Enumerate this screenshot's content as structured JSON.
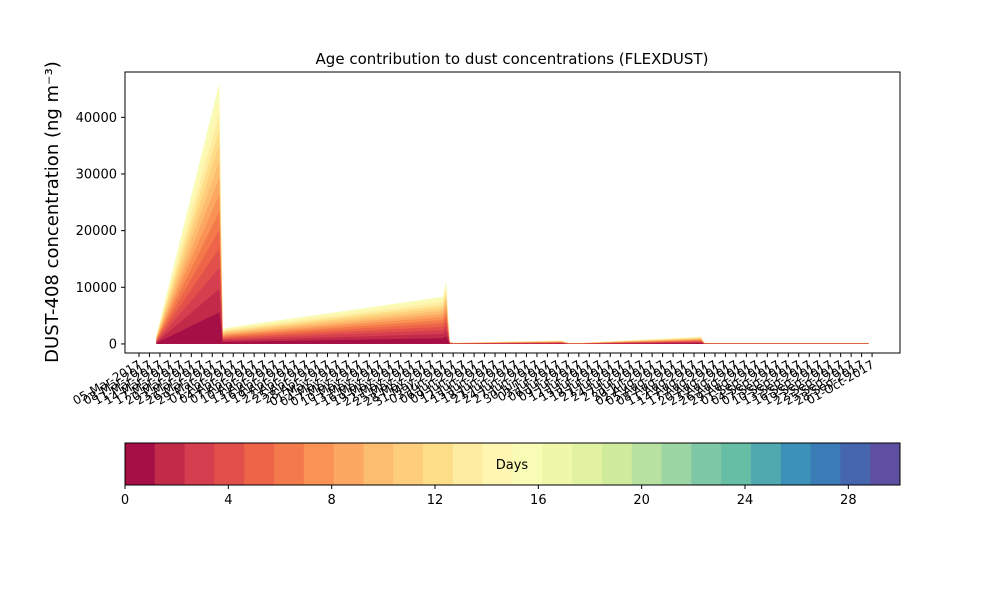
{
  "chart_data": {
    "type": "area",
    "title": "Age contribution to dust concentrations (FLEXDUST)",
    "xlabel": "",
    "ylabel": "DUST-408 concentration (ng m⁻³)",
    "ylim": [
      -1600,
      48000
    ],
    "yticks": [
      0,
      10000,
      20000,
      30000,
      40000
    ],
    "ytick_labels": [
      "0",
      "10000",
      "20000",
      "30000",
      "40000"
    ],
    "xlim": [
      "2017-03-01",
      "2017-10-09"
    ],
    "x_tick_dates": [
      "2017-03-05",
      "2017-03-08",
      "2017-03-11",
      "2017-03-14",
      "2017-03-17",
      "2017-03-20",
      "2017-03-23",
      "2017-03-26",
      "2017-03-29",
      "2017-04-01",
      "2017-04-04",
      "2017-04-07",
      "2017-04-10",
      "2017-04-13",
      "2017-04-16",
      "2017-04-19",
      "2017-04-22",
      "2017-04-25",
      "2017-04-28",
      "2017-05-01",
      "2017-05-04",
      "2017-05-07",
      "2017-05-10",
      "2017-05-13",
      "2017-05-16",
      "2017-05-19",
      "2017-05-22",
      "2017-05-25",
      "2017-05-28",
      "2017-05-31",
      "2017-06-03",
      "2017-06-06",
      "2017-06-09",
      "2017-06-12",
      "2017-06-15",
      "2017-06-18",
      "2017-06-21",
      "2017-06-24",
      "2017-06-27",
      "2017-06-30",
      "2017-07-03",
      "2017-07-06",
      "2017-07-09",
      "2017-07-12",
      "2017-07-15",
      "2017-07-18",
      "2017-07-21",
      "2017-07-24",
      "2017-07-27",
      "2017-07-30",
      "2017-08-02",
      "2017-08-05",
      "2017-08-08",
      "2017-08-11",
      "2017-08-14",
      "2017-08-17",
      "2017-08-20",
      "2017-08-23",
      "2017-08-26",
      "2017-08-29",
      "2017-09-01",
      "2017-09-04",
      "2017-09-07",
      "2017-09-10",
      "2017-09-13",
      "2017-09-16",
      "2017-09-19",
      "2017-09-22",
      "2017-09-25",
      "2017-09-28",
      "2017-10-01"
    ],
    "x_tick_labels": [
      "05-Mar-2017",
      "08-Mar-2017",
      "11-Mar-2017",
      "14-Mar-2017",
      "17-Mar-2017",
      "20-Mar-2017",
      "23-Mar-2017",
      "26-Mar-2017",
      "29-Mar-2017",
      "01-Apr-2017",
      "04-Apr-2017",
      "07-Apr-2017",
      "10-Apr-2017",
      "13-Apr-2017",
      "16-Apr-2017",
      "19-Apr-2017",
      "22-Apr-2017",
      "25-Apr-2017",
      "28-Apr-2017",
      "01-May-2017",
      "04-May-2017",
      "07-May-2017",
      "10-May-2017",
      "13-May-2017",
      "16-May-2017",
      "19-May-2017",
      "22-May-2017",
      "25-May-2017",
      "28-May-2017",
      "31-May-2017",
      "03-Jun-2017",
      "06-Jun-2017",
      "09-Jun-2017",
      "12-Jun-2017",
      "15-Jun-2017",
      "18-Jun-2017",
      "21-Jun-2017",
      "24-Jun-2017",
      "27-Jun-2017",
      "30-Jun-2017",
      "03-Jul-2017",
      "06-Jul-2017",
      "09-Jul-2017",
      "12-Jul-2017",
      "15-Jul-2017",
      "18-Jul-2017",
      "21-Jul-2017",
      "24-Jul-2017",
      "27-Jul-2017",
      "30-Jul-2017",
      "02-Aug-2017",
      "05-Aug-2017",
      "08-Aug-2017",
      "11-Aug-2017",
      "14-Aug-2017",
      "17-Aug-2017",
      "20-Aug-2017",
      "23-Aug-2017",
      "26-Aug-2017",
      "29-Aug-2017",
      "01-Sep-2017",
      "04-Sep-2017",
      "07-Sep-2017",
      "10-Sep-2017",
      "13-Sep-2017",
      "16-Sep-2017",
      "19-Sep-2017",
      "22-Sep-2017",
      "25-Sep-2017",
      "28-Sep-2017",
      "01-Oct-2017"
    ],
    "total": {
      "x": [
        "2017-03-10",
        "2017-03-28",
        "2017-03-29",
        "2017-03-30",
        "2017-04-01",
        "2017-05-31",
        "2017-06-01",
        "2017-06-02",
        "2017-06-03",
        "2017-07-04",
        "2017-07-06",
        "2017-07-10",
        "2017-08-13",
        "2017-08-14",
        "2017-09-30"
      ],
      "y": [
        1500,
        46000,
        2500,
        2800,
        3000,
        8300,
        11000,
        400,
        200,
        600,
        200,
        200,
        1300,
        200,
        200
      ]
    },
    "age_bins": [
      0,
      30
    ],
    "colormap": "Spectral",
    "colorbar": {
      "label": "Days",
      "range": [
        0,
        30
      ],
      "ticks": [
        0,
        4,
        8,
        12,
        16,
        20,
        24,
        28
      ],
      "tick_labels": [
        "0",
        "4",
        "8",
        "12",
        "16",
        "20",
        "24",
        "28"
      ],
      "colors": [
        "#a50f45",
        "#c12a49",
        "#d53e4f",
        "#e1504b",
        "#ed6448",
        "#f47a4b",
        "#f99254",
        "#fca862",
        "#fdbd6f",
        "#fece7c",
        "#fede89",
        "#feeda1",
        "#fef6b1",
        "#f9fcb5",
        "#eef8a8",
        "#e1f3a0",
        "#cfeb9b",
        "#b6e1a0",
        "#9bd5a3",
        "#7ec8a5",
        "#66bea5",
        "#50a9af",
        "#3b91b8",
        "#3a7cb5",
        "#4566ae",
        "#5e4fa2"
      ]
    }
  }
}
